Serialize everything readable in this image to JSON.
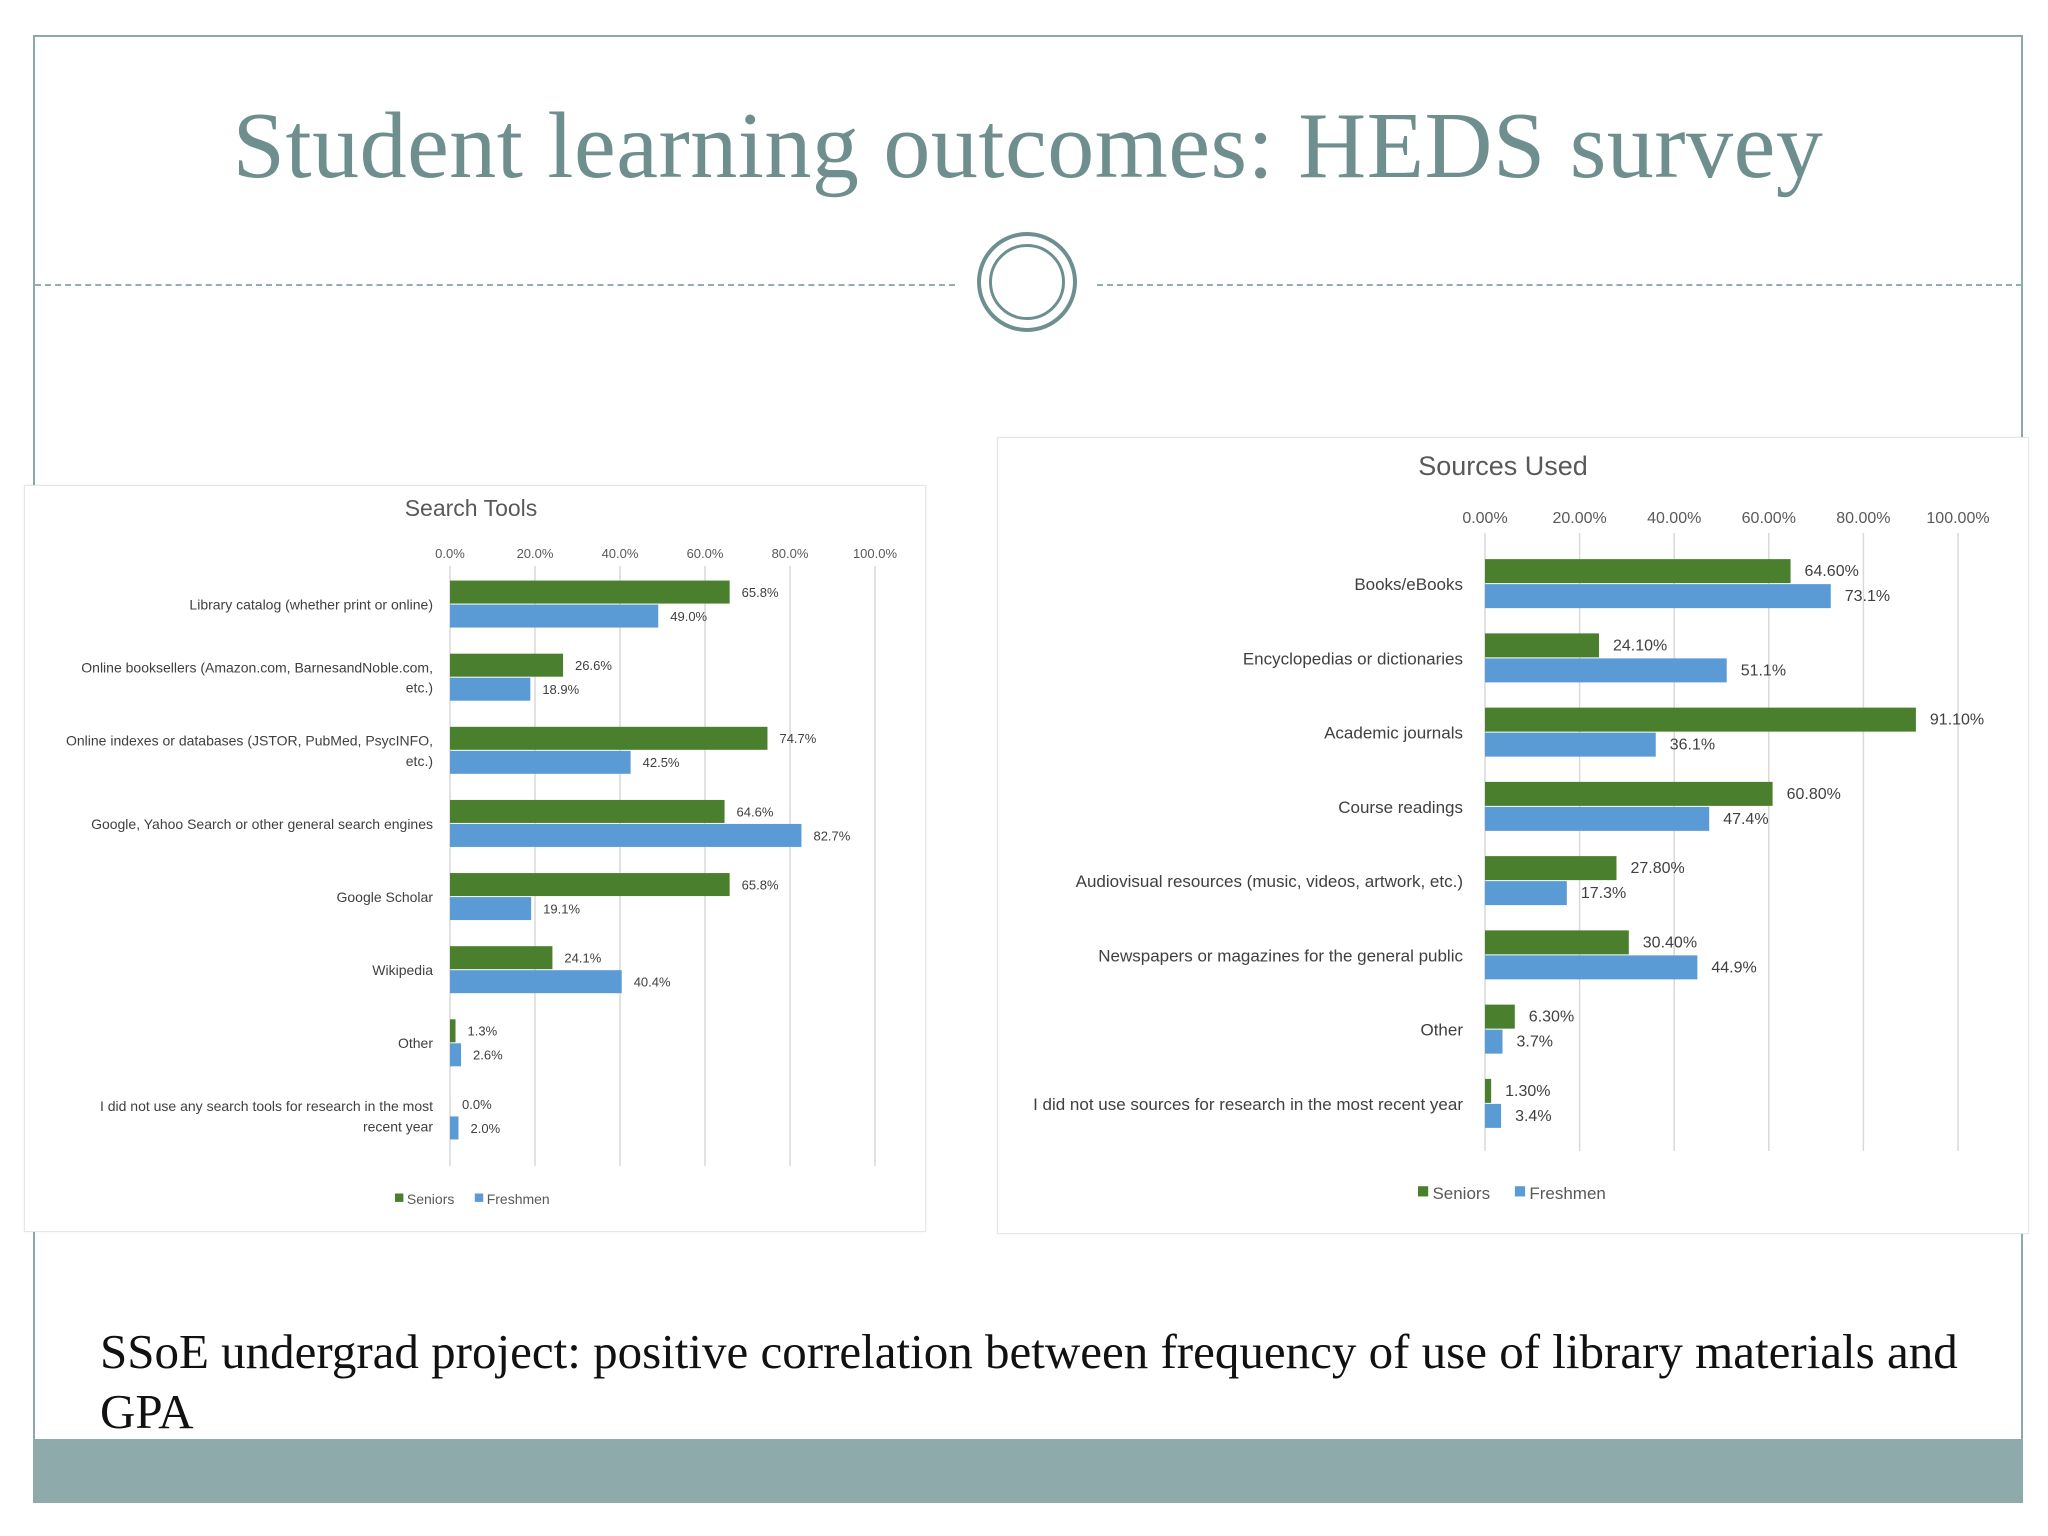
{
  "slide": {
    "title": "Student learning outcomes: HEDS survey",
    "body_text": "SSoE undergrad project: positive correlation between frequency of use of library materials and GPA",
    "colors": {
      "accent": "#8eaaab",
      "title": "#6f8f8f"
    }
  },
  "chart_data": [
    {
      "type": "bar",
      "orientation": "horizontal",
      "title": "Search Tools",
      "xlim": [
        0,
        100
      ],
      "ticks": [
        "0.0%",
        "20.0%",
        "40.0%",
        "60.0%",
        "80.0%",
        "100.0%"
      ],
      "tick_values": [
        0,
        20,
        40,
        60,
        80,
        100
      ],
      "grid": true,
      "legend_position": "bottom",
      "categories": [
        [
          "Library catalog (whether print or online)"
        ],
        [
          "Online booksellers (Amazon.com, BarnesandNoble.com,",
          "etc.)"
        ],
        [
          "Online indexes or databases (JSTOR, PubMed, PsycINFO,",
          "etc.)"
        ],
        [
          "Google, Yahoo Search or other general search engines"
        ],
        [
          "Google Scholar"
        ],
        [
          "Wikipedia"
        ],
        [
          "Other"
        ],
        [
          "I did not use any search tools for research in the most",
          "recent year"
        ]
      ],
      "series": [
        {
          "name": "Seniors",
          "color": "#4a7f2e",
          "values": [
            65.8,
            26.6,
            74.7,
            64.6,
            65.8,
            24.1,
            1.3,
            0.0
          ],
          "labels": [
            "65.8%",
            "26.6%",
            "74.7%",
            "64.6%",
            "65.8%",
            "24.1%",
            "1.3%",
            "0.0%"
          ]
        },
        {
          "name": "Freshmen",
          "color": "#5b9bd5",
          "values": [
            49.0,
            18.9,
            42.5,
            82.7,
            19.1,
            40.4,
            2.6,
            2.0
          ],
          "labels": [
            "49.0%",
            "18.9%",
            "42.5%",
            "82.7%",
            "19.1%",
            "40.4%",
            "2.6%",
            "2.0%"
          ]
        }
      ]
    },
    {
      "type": "bar",
      "orientation": "horizontal",
      "title": "Sources Used",
      "xlim": [
        0,
        100
      ],
      "ticks": [
        "0.00%",
        "20.00%",
        "40.00%",
        "60.00%",
        "80.00%",
        "100.00%"
      ],
      "tick_values": [
        0,
        20,
        40,
        60,
        80,
        100
      ],
      "grid": true,
      "legend_position": "bottom",
      "categories": [
        [
          "Books/eBooks"
        ],
        [
          "Encyclopedias or dictionaries"
        ],
        [
          "Academic journals"
        ],
        [
          "Course readings"
        ],
        [
          "Audiovisual resources (music, videos, artwork, etc.)"
        ],
        [
          "Newspapers or magazines for the general public"
        ],
        [
          "Other"
        ],
        [
          "I did not use sources for research in the most recent year"
        ]
      ],
      "series": [
        {
          "name": "Seniors",
          "color": "#4a7f2e",
          "values": [
            64.6,
            24.1,
            91.1,
            60.8,
            27.8,
            30.4,
            6.3,
            1.3
          ],
          "labels": [
            "64.60%",
            "24.10%",
            "91.10%",
            "60.80%",
            "27.80%",
            "30.40%",
            "6.30%",
            "1.30%"
          ]
        },
        {
          "name": "Freshmen",
          "color": "#5b9bd5",
          "values": [
            73.1,
            51.1,
            36.1,
            47.4,
            17.3,
            44.9,
            3.7,
            3.4
          ],
          "labels": [
            "73.1%",
            "51.1%",
            "36.1%",
            "47.4%",
            "17.3%",
            "44.9%",
            "3.7%",
            "3.4%"
          ]
        }
      ]
    }
  ]
}
